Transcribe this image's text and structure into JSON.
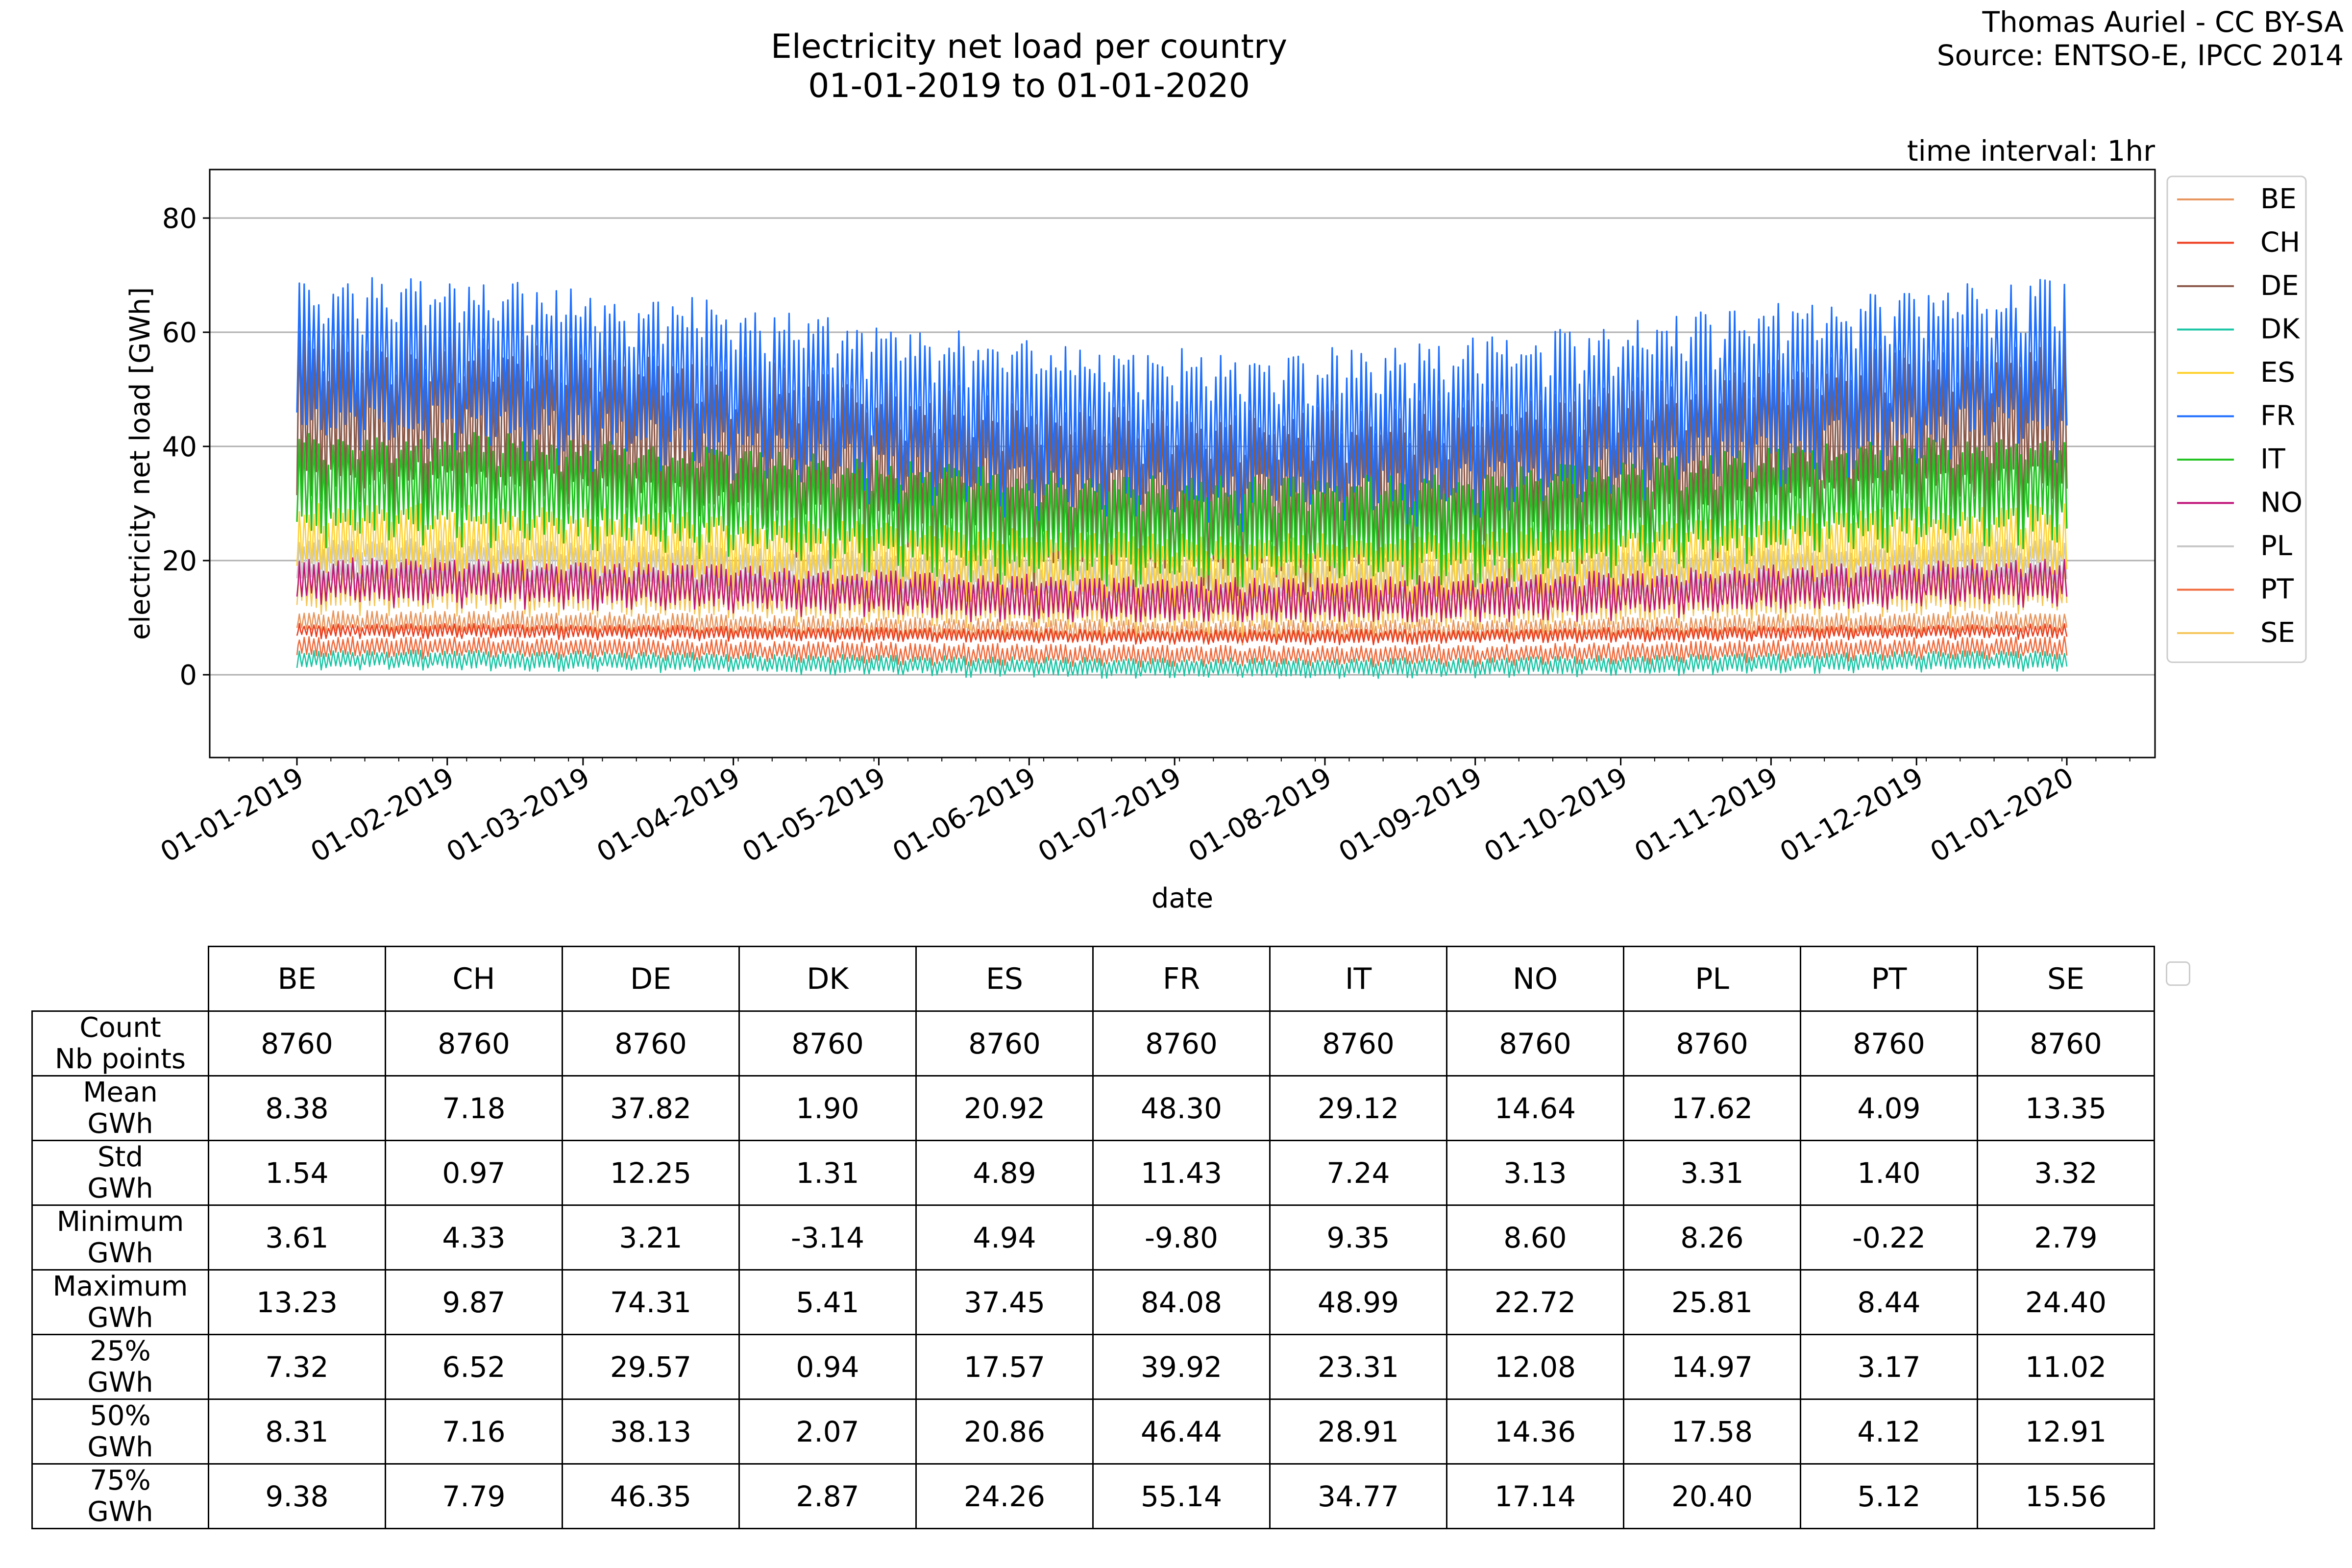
{
  "chart_data": {
    "type": "line",
    "title": "Electricity net load per country",
    "subtitle": "01-01-2019 to 01-01-2020",
    "credit_line1": "Thomas Auriel - CC BY-SA",
    "credit_line2": "Source: ENTSO-E, IPCC 2014",
    "interval_label": "time interval: 1hr",
    "xlabel": "date",
    "ylabel": "electricity net load [GWh]",
    "ylim": [
      -14.5,
      88.5
    ],
    "yticks": [
      0,
      20,
      40,
      60,
      80
    ],
    "x_range": [
      "2019-01-01",
      "2020-01-01"
    ],
    "xticks": [
      "01-01-2019",
      "01-02-2019",
      "01-03-2019",
      "01-04-2019",
      "01-05-2019",
      "01-06-2019",
      "01-07-2019",
      "01-08-2019",
      "01-09-2019",
      "01-10-2019",
      "01-11-2019",
      "01-12-2019",
      "01-01-2020"
    ],
    "grid": "horizontal",
    "legend_position": "right",
    "n_points": 8760,
    "series": [
      {
        "name": "BE",
        "color": "#e8965f",
        "mean": 8.38,
        "std": 1.54,
        "min": 3.61,
        "max": 13.23,
        "q25": 7.32,
        "q50": 8.31,
        "q75": 9.38
      },
      {
        "name": "CH",
        "color": "#ee3b1c",
        "mean": 7.18,
        "std": 0.97,
        "min": 4.33,
        "max": 9.87,
        "q25": 6.52,
        "q50": 7.16,
        "q75": 7.79
      },
      {
        "name": "DE",
        "color": "#8c5a4a",
        "mean": 37.82,
        "std": 12.25,
        "min": 3.21,
        "max": 74.31,
        "q25": 29.57,
        "q50": 38.13,
        "q75": 46.35
      },
      {
        "name": "DK",
        "color": "#19c6a5",
        "mean": 1.9,
        "std": 1.31,
        "min": -3.14,
        "max": 5.41,
        "q25": 0.94,
        "q50": 2.07,
        "q75": 2.87
      },
      {
        "name": "ES",
        "color": "#ffd12e",
        "mean": 20.92,
        "std": 4.89,
        "min": 4.94,
        "max": 37.45,
        "q25": 17.57,
        "q50": 20.86,
        "q75": 24.26
      },
      {
        "name": "FR",
        "color": "#1f6fff",
        "mean": 48.3,
        "std": 11.43,
        "min": -9.8,
        "max": 84.08,
        "q25": 39.92,
        "q50": 46.44,
        "q75": 55.14
      },
      {
        "name": "IT",
        "color": "#22c322",
        "mean": 29.12,
        "std": 7.24,
        "min": 9.35,
        "max": 48.99,
        "q25": 23.31,
        "q50": 28.91,
        "q75": 34.77
      },
      {
        "name": "NO",
        "color": "#c0157a",
        "mean": 14.64,
        "std": 3.13,
        "min": 8.6,
        "max": 22.72,
        "q25": 12.08,
        "q50": 14.36,
        "q75": 17.14
      },
      {
        "name": "PL",
        "color": "#c8c8c8",
        "mean": 17.62,
        "std": 3.31,
        "min": 8.26,
        "max": 25.81,
        "q25": 14.97,
        "q50": 17.58,
        "q75": 20.4
      },
      {
        "name": "PT",
        "color": "#f06a3c",
        "mean": 4.09,
        "std": 1.4,
        "min": -0.22,
        "max": 8.44,
        "q25": 3.17,
        "q50": 4.12,
        "q75": 5.12
      },
      {
        "name": "SE",
        "color": "#f5c65a",
        "mean": 13.35,
        "std": 3.32,
        "min": 2.79,
        "max": 24.4,
        "q25": 11.02,
        "q50": 12.91,
        "q75": 15.56
      }
    ]
  },
  "table": {
    "columns": [
      "BE",
      "CH",
      "DE",
      "DK",
      "ES",
      "FR",
      "IT",
      "NO",
      "PL",
      "PT",
      "SE"
    ],
    "rows": [
      {
        "label1": "Count",
        "label2": "Nb points",
        "values": [
          "8760",
          "8760",
          "8760",
          "8760",
          "8760",
          "8760",
          "8760",
          "8760",
          "8760",
          "8760",
          "8760"
        ]
      },
      {
        "label1": "Mean",
        "label2": "GWh",
        "values": [
          "8.38",
          "7.18",
          "37.82",
          "1.90",
          "20.92",
          "48.30",
          "29.12",
          "14.64",
          "17.62",
          "4.09",
          "13.35"
        ]
      },
      {
        "label1": "Std",
        "label2": "GWh",
        "values": [
          "1.54",
          "0.97",
          "12.25",
          "1.31",
          "4.89",
          "11.43",
          "7.24",
          "3.13",
          "3.31",
          "1.40",
          "3.32"
        ]
      },
      {
        "label1": "Minimum",
        "label2": "GWh",
        "values": [
          "3.61",
          "4.33",
          "3.21",
          "-3.14",
          "4.94",
          "-9.80",
          "9.35",
          "8.60",
          "8.26",
          "-0.22",
          "2.79"
        ]
      },
      {
        "label1": "Maximum",
        "label2": "GWh",
        "values": [
          "13.23",
          "9.87",
          "74.31",
          "5.41",
          "37.45",
          "84.08",
          "48.99",
          "22.72",
          "25.81",
          "8.44",
          "24.40"
        ]
      },
      {
        "label1": "25%",
        "label2": "GWh",
        "values": [
          "7.32",
          "6.52",
          "29.57",
          "0.94",
          "17.57",
          "39.92",
          "23.31",
          "12.08",
          "14.97",
          "3.17",
          "11.02"
        ]
      },
      {
        "label1": "50%",
        "label2": "GWh",
        "values": [
          "8.31",
          "7.16",
          "38.13",
          "2.07",
          "20.86",
          "46.44",
          "28.91",
          "14.36",
          "17.58",
          "4.12",
          "12.91"
        ]
      },
      {
        "label1": "75%",
        "label2": "GWh",
        "values": [
          "9.38",
          "7.79",
          "46.35",
          "2.87",
          "24.26",
          "55.14",
          "34.77",
          "17.14",
          "20.40",
          "5.12",
          "15.56"
        ]
      }
    ]
  }
}
